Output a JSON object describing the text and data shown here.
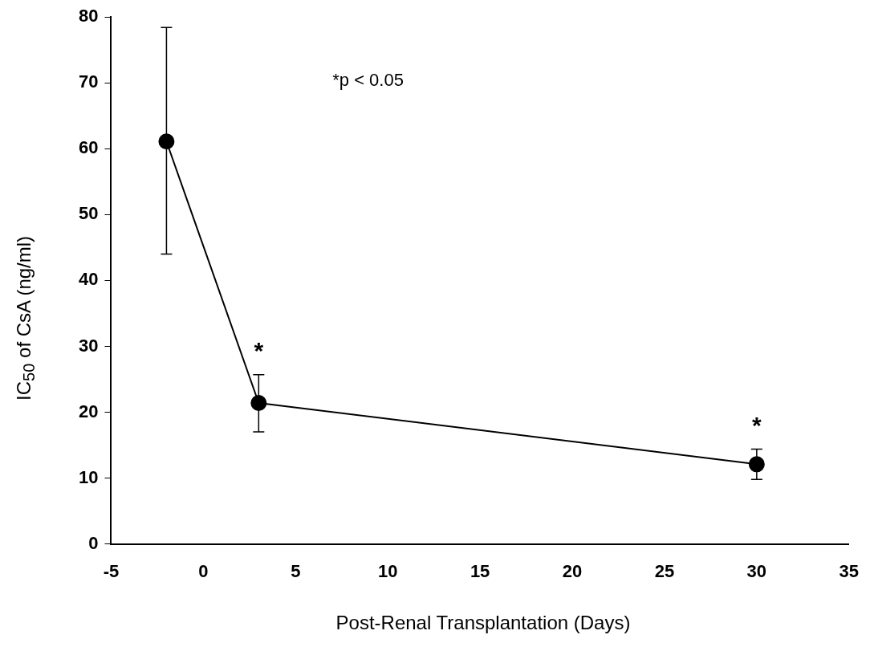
{
  "chart_data": {
    "type": "line",
    "xlabel": "Post-Renal Transplantation (Days)",
    "ylabel": "IC$_{50}$ of CsA (ng/ml)",
    "x": [
      -2,
      3,
      30
    ],
    "series": [
      {
        "color": "#000000",
        "values": [
          61.1,
          21.4,
          12.1
        ],
        "errors": [
          [
            44.0,
            78.4
          ],
          [
            17.0,
            25.7
          ],
          [
            9.8,
            14.4
          ]
        ]
      }
    ],
    "xlim": [
      -5,
      35
    ],
    "xticks": [
      -5,
      0,
      5,
      10,
      15,
      20,
      25,
      30,
      35
    ],
    "ylim": [
      0,
      80
    ],
    "yticks": [
      0,
      10,
      20,
      30,
      40,
      50,
      60,
      70,
      80
    ],
    "grid": false,
    "legend": false,
    "marker": "circle",
    "line_style": "solid",
    "annotations": [
      "*p < 0.05",
      {
        "text": "*",
        "x": 3,
        "y": 21.4
      },
      {
        "text": "*",
        "x": 30,
        "y": 12.1
      }
    ]
  }
}
